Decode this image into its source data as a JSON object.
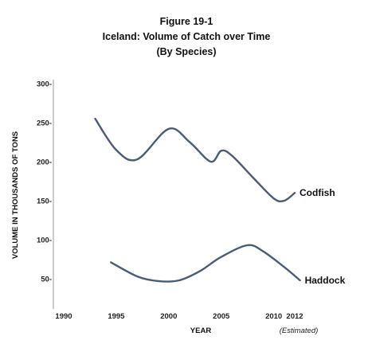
{
  "chart_data": {
    "type": "line",
    "title": "Figure 19-1",
    "subtitle": "Iceland: Volume of Catch over Time",
    "subtitle2": "(By Species)",
    "xlabel": "YEAR",
    "ylabel": "VOLUME IN THOUSANDS OF TONS",
    "x_ticks": [
      1990,
      1995,
      2000,
      2005,
      2010,
      2012
    ],
    "x_tick_labels": [
      "1990",
      "1995",
      "2000",
      "2005",
      "2010",
      "2012"
    ],
    "y_ticks": [
      50,
      100,
      150,
      200,
      250,
      300
    ],
    "y_tick_labels": [
      "50-",
      "100-",
      "150-",
      "200-",
      "250-",
      "300-"
    ],
    "xlim": [
      1989,
      2014
    ],
    "ylim": [
      10,
      310
    ],
    "x_note": "(Estimated)",
    "grid": false,
    "line_color": "#4a5c78",
    "series": [
      {
        "name": "Codfish",
        "x": [
          1993,
          1995,
          1997,
          2000,
          2002,
          2004,
          2005,
          2006,
          2008,
          2010,
          2011,
          2012
        ],
        "y": [
          255,
          215,
          203,
          242,
          225,
          200,
          214,
          208,
          180,
          153,
          150,
          160
        ]
      },
      {
        "name": "Haddock",
        "x": [
          1994.5,
          1997,
          1999,
          2001,
          2003,
          2005,
          2007.5,
          2009,
          2011,
          2012.5
        ],
        "y": [
          71,
          53,
          47,
          48,
          60,
          78,
          93,
          85,
          65,
          48
        ]
      }
    ]
  }
}
